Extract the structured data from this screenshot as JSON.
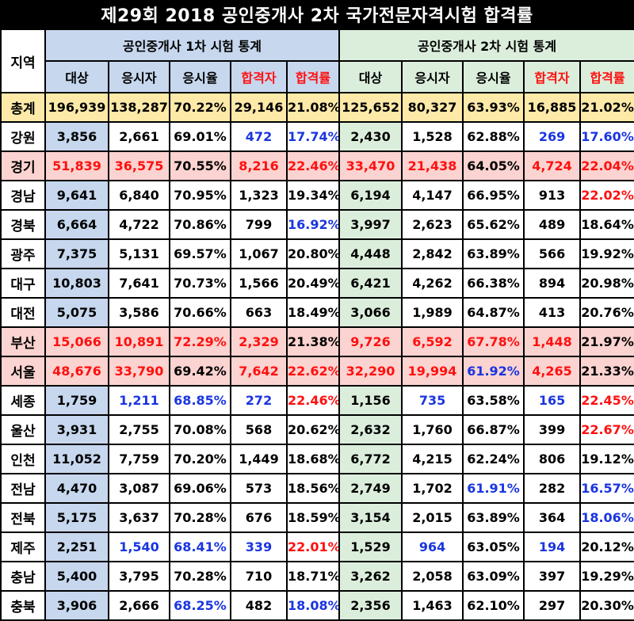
{
  "title": "제29회 2018 공인중개사 2차 국가전문자격시험 합격률",
  "headers": {
    "region": "지역",
    "group1": "공인중개사 1차 시험 통계",
    "group2": "공인중개사 2차 시험 통계",
    "sub": [
      "대상",
      "응시자",
      "응시율",
      "합격자",
      "합격률",
      "대상",
      "응시자",
      "응시율",
      "합격자",
      "합격률"
    ]
  },
  "colors": {
    "red": "#ff1010",
    "blue": "#1a35e0",
    "group1_bg": "#c6d7ee",
    "group2_bg": "#dbeedc",
    "total_bg": "#fde9a8",
    "highlight_bg": "#fbd3d0"
  },
  "rows": [
    {
      "region": "총계",
      "style": "total",
      "cells": [
        "196,939",
        "138,287",
        "70.22%",
        "29,146",
        "21.08%",
        "125,652",
        "80,327",
        "63.93%",
        "16,885",
        "21.02%"
      ],
      "colors": [
        "k",
        "k",
        "k",
        "k",
        "k",
        "k",
        "k",
        "k",
        "k",
        "k"
      ]
    },
    {
      "region": "강원",
      "style": "",
      "cells": [
        "3,856",
        "2,661",
        "69.01%",
        "472",
        "17.74%",
        "2,430",
        "1,528",
        "62.88%",
        "269",
        "17.60%"
      ],
      "colors": [
        "k",
        "k",
        "k",
        "b",
        "b",
        "k",
        "k",
        "k",
        "b",
        "b"
      ]
    },
    {
      "region": "경기",
      "style": "hl",
      "cells": [
        "51,839",
        "36,575",
        "70.55%",
        "8,216",
        "22.46%",
        "33,470",
        "21,438",
        "64.05%",
        "4,724",
        "22.04%"
      ],
      "colors": [
        "r",
        "r",
        "k",
        "r",
        "r",
        "r",
        "r",
        "k",
        "r",
        "r"
      ]
    },
    {
      "region": "경남",
      "style": "",
      "cells": [
        "9,641",
        "6,840",
        "70.95%",
        "1,323",
        "19.34%",
        "6,194",
        "4,147",
        "66.95%",
        "913",
        "22.02%"
      ],
      "colors": [
        "k",
        "k",
        "k",
        "k",
        "k",
        "k",
        "k",
        "k",
        "k",
        "r"
      ]
    },
    {
      "region": "경북",
      "style": "",
      "cells": [
        "6,664",
        "4,722",
        "70.86%",
        "799",
        "16.92%",
        "3,997",
        "2,623",
        "65.62%",
        "489",
        "18.64%"
      ],
      "colors": [
        "k",
        "k",
        "k",
        "k",
        "b",
        "k",
        "k",
        "k",
        "k",
        "k"
      ]
    },
    {
      "region": "광주",
      "style": "",
      "cells": [
        "7,375",
        "5,131",
        "69.57%",
        "1,067",
        "20.80%",
        "4,448",
        "2,842",
        "63.89%",
        "566",
        "19.92%"
      ],
      "colors": [
        "k",
        "k",
        "k",
        "k",
        "k",
        "k",
        "k",
        "k",
        "k",
        "k"
      ]
    },
    {
      "region": "대구",
      "style": "",
      "cells": [
        "10,803",
        "7,641",
        "70.73%",
        "1,566",
        "20.49%",
        "6,421",
        "4,262",
        "66.38%",
        "894",
        "20.98%"
      ],
      "colors": [
        "k",
        "k",
        "k",
        "k",
        "k",
        "k",
        "k",
        "k",
        "k",
        "k"
      ]
    },
    {
      "region": "대전",
      "style": "",
      "cells": [
        "5,075",
        "3,586",
        "70.66%",
        "663",
        "18.49%",
        "3,066",
        "1,989",
        "64.87%",
        "413",
        "20.76%"
      ],
      "colors": [
        "k",
        "k",
        "k",
        "k",
        "k",
        "k",
        "k",
        "k",
        "k",
        "k"
      ]
    },
    {
      "region": "부산",
      "style": "hl",
      "cells": [
        "15,066",
        "10,891",
        "72.29%",
        "2,329",
        "21.38%",
        "9,726",
        "6,592",
        "67.78%",
        "1,448",
        "21.97%"
      ],
      "colors": [
        "r",
        "r",
        "r",
        "r",
        "k",
        "r",
        "r",
        "r",
        "r",
        "k"
      ]
    },
    {
      "region": "서울",
      "style": "hl",
      "cells": [
        "48,676",
        "33,790",
        "69.42%",
        "7,642",
        "22.62%",
        "32,290",
        "19,994",
        "61.92%",
        "4,265",
        "21.33%"
      ],
      "colors": [
        "r",
        "r",
        "k",
        "r",
        "r",
        "r",
        "r",
        "b",
        "r",
        "k"
      ]
    },
    {
      "region": "세종",
      "style": "",
      "cells": [
        "1,759",
        "1,211",
        "68.85%",
        "272",
        "22.46%",
        "1,156",
        "735",
        "63.58%",
        "165",
        "22.45%"
      ],
      "colors": [
        "k",
        "b",
        "b",
        "b",
        "r",
        "k",
        "b",
        "k",
        "b",
        "r"
      ]
    },
    {
      "region": "울산",
      "style": "",
      "cells": [
        "3,931",
        "2,755",
        "70.08%",
        "568",
        "20.62%",
        "2,632",
        "1,760",
        "66.87%",
        "399",
        "22.67%"
      ],
      "colors": [
        "k",
        "k",
        "k",
        "k",
        "k",
        "k",
        "k",
        "k",
        "k",
        "r"
      ]
    },
    {
      "region": "인천",
      "style": "",
      "cells": [
        "11,052",
        "7,759",
        "70.20%",
        "1,449",
        "18.68%",
        "6,772",
        "4,215",
        "62.24%",
        "806",
        "19.12%"
      ],
      "colors": [
        "k",
        "k",
        "k",
        "k",
        "k",
        "k",
        "k",
        "k",
        "k",
        "k"
      ]
    },
    {
      "region": "전남",
      "style": "",
      "cells": [
        "4,470",
        "3,087",
        "69.06%",
        "573",
        "18.56%",
        "2,749",
        "1,702",
        "61.91%",
        "282",
        "16.57%"
      ],
      "colors": [
        "k",
        "k",
        "k",
        "k",
        "k",
        "k",
        "k",
        "b",
        "k",
        "b"
      ]
    },
    {
      "region": "전북",
      "style": "",
      "cells": [
        "5,175",
        "3,637",
        "70.28%",
        "676",
        "18.59%",
        "3,154",
        "2,015",
        "63.89%",
        "364",
        "18.06%"
      ],
      "colors": [
        "k",
        "k",
        "k",
        "k",
        "k",
        "k",
        "k",
        "k",
        "k",
        "b"
      ]
    },
    {
      "region": "제주",
      "style": "",
      "cells": [
        "2,251",
        "1,540",
        "68.41%",
        "339",
        "22.01%",
        "1,529",
        "964",
        "63.05%",
        "194",
        "20.12%"
      ],
      "colors": [
        "k",
        "b",
        "b",
        "b",
        "r",
        "k",
        "b",
        "k",
        "b",
        "k"
      ]
    },
    {
      "region": "충남",
      "style": "",
      "cells": [
        "5,400",
        "3,795",
        "70.28%",
        "710",
        "18.71%",
        "3,262",
        "2,058",
        "63.09%",
        "397",
        "19.29%"
      ],
      "colors": [
        "k",
        "k",
        "k",
        "k",
        "k",
        "k",
        "k",
        "k",
        "k",
        "k"
      ]
    },
    {
      "region": "충북",
      "style": "",
      "cells": [
        "3,906",
        "2,666",
        "68.25%",
        "482",
        "18.08%",
        "2,356",
        "1,463",
        "62.10%",
        "297",
        "20.30%"
      ],
      "colors": [
        "k",
        "k",
        "b",
        "k",
        "b",
        "k",
        "k",
        "k",
        "k",
        "k"
      ]
    }
  ]
}
